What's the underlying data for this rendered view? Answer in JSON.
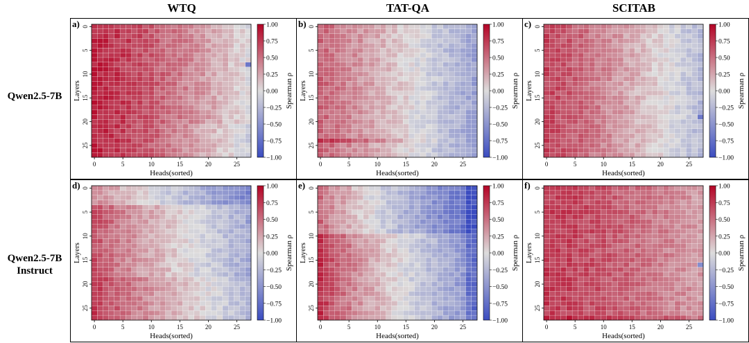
{
  "column_titles": [
    "WTQ",
    "TAT-QA",
    "SCITAB"
  ],
  "row_titles": [
    {
      "line1": "Qwen2.5-7B",
      "line2": ""
    },
    {
      "line1": "Qwen2.5-7B",
      "line2": "Instruct"
    }
  ],
  "shared_axes": {
    "xlabel": "Heads(sorted)",
    "ylabel": "Layers",
    "x_ticks": [
      "0",
      "5",
      "10",
      "15",
      "20",
      "25"
    ],
    "y_ticks": [
      "0",
      "5",
      "10",
      "15",
      "20",
      "25"
    ],
    "colorbar_label": "Spearman ρ",
    "colorbar_ticks": [
      "1.00",
      "0.75",
      "0.50",
      "0.25",
      "0.00",
      "−0.25",
      "−0.50",
      "−0.75",
      "−1.00"
    ],
    "colormap": {
      "low": "#3b4cc0",
      "mid": "#dddcdc",
      "high": "#b40426"
    }
  },
  "chart_data": [
    {
      "type": "heatmap",
      "panel_label": "a)",
      "dataset": "WTQ",
      "model": "Qwen2.5-7B",
      "rows": 28,
      "cols": 28,
      "vmin": -1,
      "vmax": 1,
      "description_values": {
        "left_max": 0.9,
        "right_min": 0.05,
        "right_min_bottom": -0.05
      }
    },
    {
      "type": "heatmap",
      "panel_label": "b)",
      "dataset": "TAT-QA",
      "model": "Qwen2.5-7B",
      "rows": 28,
      "cols": 28,
      "vmin": -1,
      "vmax": 1,
      "description_values": {
        "left_max": 0.65,
        "right_min": -0.35,
        "peak_row": 24
      }
    },
    {
      "type": "heatmap",
      "panel_label": "c)",
      "dataset": "SCITAB",
      "model": "Qwen2.5-7B",
      "rows": 28,
      "cols": 28,
      "vmin": -1,
      "vmax": 1,
      "description_values": {
        "left_max": 0.8,
        "right_min": -0.25
      }
    },
    {
      "type": "heatmap",
      "panel_label": "d)",
      "dataset": "WTQ",
      "model": "Qwen2.5-7B Instruct",
      "rows": 28,
      "cols": 28,
      "vmin": -1,
      "vmax": 1,
      "description_values": {
        "left_max": 0.7,
        "right_min": -0.3
      }
    },
    {
      "type": "heatmap",
      "panel_label": "e)",
      "dataset": "TAT-QA",
      "model": "Qwen2.5-7B Instruct",
      "rows": 28,
      "cols": 28,
      "vmin": -1,
      "vmax": 1,
      "description_values": {
        "left_max": 0.8,
        "right_min": -0.7
      }
    },
    {
      "type": "heatmap",
      "panel_label": "f)",
      "dataset": "SCITAB",
      "model": "Qwen2.5-7B Instruct",
      "rows": 28,
      "cols": 28,
      "vmin": -1,
      "vmax": 1,
      "description_values": {
        "left_max": 0.85,
        "right_min": 0.3
      }
    }
  ]
}
